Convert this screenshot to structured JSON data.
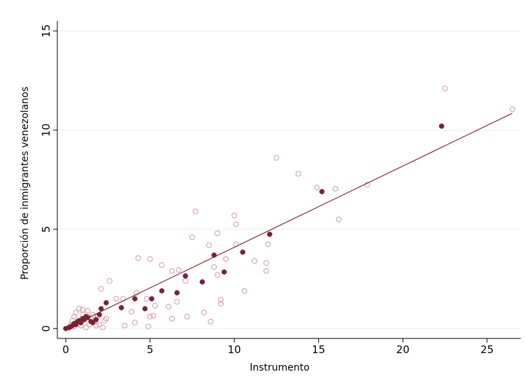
{
  "chart_data": {
    "type": "scatter",
    "title": "",
    "xlabel": "Instrumento",
    "ylabel": "Proporción de inmigrantes venezolanos",
    "xlim": [
      -0.5,
      27
    ],
    "ylim": [
      -0.5,
      15.5
    ],
    "x_ticks": [
      0,
      5,
      10,
      15,
      20,
      25
    ],
    "y_ticks": [
      0,
      5,
      10,
      15
    ],
    "grid": "horizontal",
    "legend": "none",
    "colors": {
      "line": "#8b2c2c",
      "filled": "#7a2230",
      "hollow": "#d39aa2",
      "grid": "#e6eef2"
    },
    "series": [
      {
        "marker": "hollow-circle",
        "points": [
          [
            22.5,
            12.1
          ],
          [
            26.5,
            11.05
          ],
          [
            12.5,
            8.6
          ],
          [
            13.8,
            7.8
          ],
          [
            14.9,
            7.1
          ],
          [
            16.0,
            7.05
          ],
          [
            17.9,
            7.25
          ],
          [
            16.2,
            5.5
          ],
          [
            7.7,
            5.9
          ],
          [
            10.0,
            5.7
          ],
          [
            10.1,
            5.25
          ],
          [
            7.5,
            4.6
          ],
          [
            8.5,
            4.2
          ],
          [
            9.0,
            4.8
          ],
          [
            10.1,
            4.25
          ],
          [
            12.0,
            4.25
          ],
          [
            11.2,
            3.4
          ],
          [
            11.9,
            3.3
          ],
          [
            11.9,
            2.9
          ],
          [
            9.5,
            3.5
          ],
          [
            4.3,
            3.55
          ],
          [
            5.0,
            3.5
          ],
          [
            5.7,
            3.2
          ],
          [
            6.3,
            2.9
          ],
          [
            6.7,
            2.95
          ],
          [
            8.8,
            3.1
          ],
          [
            9.0,
            2.7
          ],
          [
            10.6,
            1.9
          ],
          [
            7.1,
            2.4
          ],
          [
            2.6,
            2.4
          ],
          [
            2.1,
            2.0
          ],
          [
            4.2,
            1.8
          ],
          [
            4.8,
            1.5
          ],
          [
            5.3,
            1.15
          ],
          [
            6.1,
            1.1
          ],
          [
            6.6,
            1.35
          ],
          [
            9.2,
            1.45
          ],
          [
            9.2,
            1.25
          ],
          [
            3.0,
            1.5
          ],
          [
            3.4,
            1.5
          ],
          [
            3.9,
            0.85
          ],
          [
            4.1,
            0.3
          ],
          [
            3.5,
            0.15
          ],
          [
            5.0,
            0.6
          ],
          [
            5.2,
            0.65
          ],
          [
            4.9,
            0.1
          ],
          [
            6.3,
            0.5
          ],
          [
            7.2,
            0.6
          ],
          [
            8.2,
            0.8
          ],
          [
            8.6,
            0.35
          ],
          [
            0.8,
            1.0
          ],
          [
            1.0,
            0.95
          ],
          [
            1.3,
            0.9
          ],
          [
            1.6,
            0.7
          ],
          [
            1.9,
            0.6
          ],
          [
            2.3,
            0.4
          ],
          [
            2.0,
            0.2
          ],
          [
            0.5,
            0.6
          ],
          [
            0.4,
            0.4
          ],
          [
            0.7,
            0.3
          ],
          [
            1.1,
            0.5
          ],
          [
            1.4,
            0.2
          ],
          [
            1.8,
            0.15
          ],
          [
            2.2,
            0.05
          ],
          [
            0.3,
            0.2
          ],
          [
            0.9,
            0.15
          ],
          [
            1.2,
            0.05
          ],
          [
            1.5,
            0.45
          ],
          [
            1.7,
            0.35
          ],
          [
            2.4,
            0.5
          ],
          [
            0.6,
            0.8
          ],
          [
            1.0,
            0.7
          ],
          [
            1.3,
            0.6
          ],
          [
            0.2,
            0.05
          ],
          [
            0.5,
            0.1
          ],
          [
            0.8,
            0.25
          ]
        ]
      },
      {
        "marker": "filled-circle",
        "points": [
          [
            0.0,
            0.0
          ],
          [
            0.2,
            0.05
          ],
          [
            0.3,
            0.1
          ],
          [
            0.4,
            0.15
          ],
          [
            0.5,
            0.25
          ],
          [
            0.6,
            0.2
          ],
          [
            0.7,
            0.35
          ],
          [
            0.8,
            0.4
          ],
          [
            0.9,
            0.3
          ],
          [
            1.0,
            0.5
          ],
          [
            1.1,
            0.45
          ],
          [
            1.2,
            0.6
          ],
          [
            1.3,
            0.55
          ],
          [
            1.5,
            0.35
          ],
          [
            1.6,
            0.3
          ],
          [
            1.8,
            0.45
          ],
          [
            2.0,
            0.7
          ],
          [
            2.1,
            1.0
          ],
          [
            2.4,
            1.3
          ],
          [
            3.3,
            1.05
          ],
          [
            4.1,
            1.5
          ],
          [
            4.7,
            1.0
          ],
          [
            5.1,
            1.5
          ],
          [
            5.7,
            1.9
          ],
          [
            6.6,
            1.8
          ],
          [
            7.1,
            2.65
          ],
          [
            8.1,
            2.35
          ],
          [
            8.8,
            3.7
          ],
          [
            9.4,
            2.85
          ],
          [
            10.5,
            3.85
          ],
          [
            12.1,
            4.75
          ],
          [
            15.2,
            6.9
          ],
          [
            22.3,
            10.2
          ]
        ]
      }
    ],
    "fit_line": {
      "x": [
        0,
        26.5
      ],
      "y": [
        0.0,
        10.85
      ]
    }
  }
}
